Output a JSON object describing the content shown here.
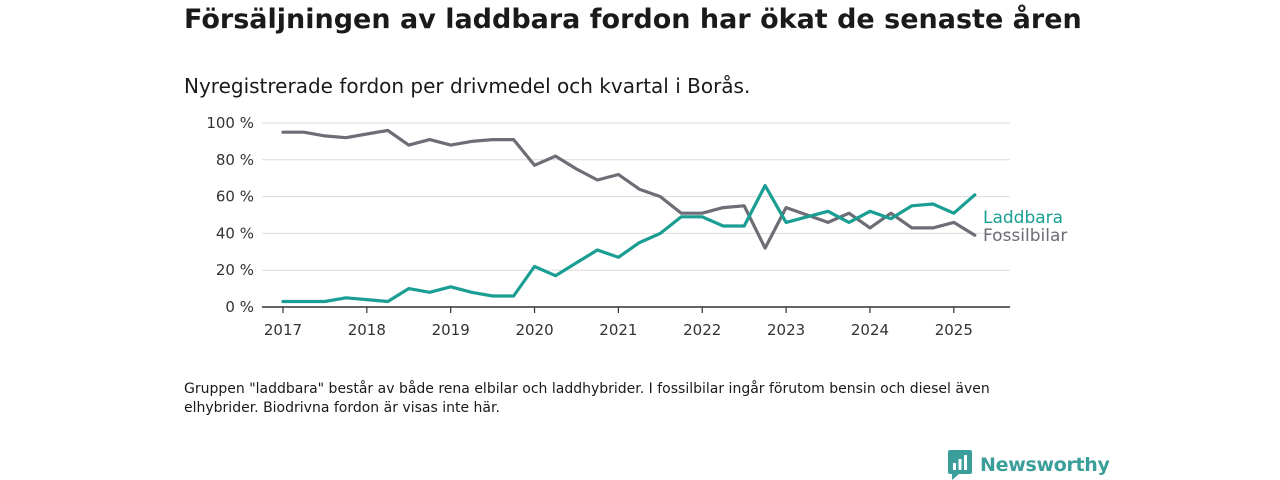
{
  "title": "Försäljningen av laddbara fordon har ökat de senaste åren",
  "subtitle": "Nyregistrerade fordon per drivmedel och kvartal i Borås.",
  "footnote": "Gruppen \"laddbara\" består av både rena elbilar och laddhybrider. I fossilbilar ingår förutom bensin och diesel även elhybrider. Biodrivna fordon är visas inte här.",
  "brand": {
    "name": "Newsworthy",
    "icon": "newsworthy-chart-logo-icon",
    "color": "#3a9e9a"
  },
  "chart_data": {
    "type": "line",
    "x_tick_labels": [
      "2017",
      "2018",
      "2019",
      "2020",
      "2021",
      "2022",
      "2023",
      "2024",
      "2025"
    ],
    "y_tick_labels": [
      "0 %",
      "20 %",
      "40 %",
      "60 %",
      "80 %",
      "100 %"
    ],
    "ylim": [
      0,
      100
    ],
    "xlim": [
      2016.75,
      2025.67
    ],
    "grid": true,
    "legend_placement": "end-of-line labels, right",
    "x": [
      2017.0,
      2017.25,
      2017.5,
      2017.75,
      2018.0,
      2018.25,
      2018.5,
      2018.75,
      2019.0,
      2019.25,
      2019.5,
      2019.75,
      2020.0,
      2020.25,
      2020.5,
      2020.75,
      2021.0,
      2021.25,
      2021.5,
      2021.75,
      2022.0,
      2022.25,
      2022.5,
      2022.75,
      2023.0,
      2023.25,
      2023.5,
      2023.75,
      2024.0,
      2024.25,
      2024.5,
      2024.75,
      2025.0,
      2025.25
    ],
    "series": [
      {
        "name": "Laddbara",
        "color": "#1a9e94",
        "values": [
          3,
          3,
          3,
          5,
          4,
          3,
          10,
          8,
          11,
          8,
          6,
          6,
          22,
          17,
          24,
          31,
          27,
          35,
          40,
          49,
          49,
          44,
          44,
          66,
          46,
          49,
          52,
          46,
          52,
          48,
          55,
          56,
          51,
          61
        ]
      },
      {
        "name": "Fossilbilar",
        "color": "#6e6c75",
        "values": [
          95,
          95,
          93,
          92,
          94,
          96,
          88,
          91,
          88,
          90,
          91,
          91,
          77,
          82,
          75,
          69,
          72,
          64,
          60,
          51,
          51,
          54,
          55,
          32,
          54,
          50,
          46,
          51,
          43,
          51,
          43,
          43,
          46,
          39
        ]
      }
    ]
  }
}
